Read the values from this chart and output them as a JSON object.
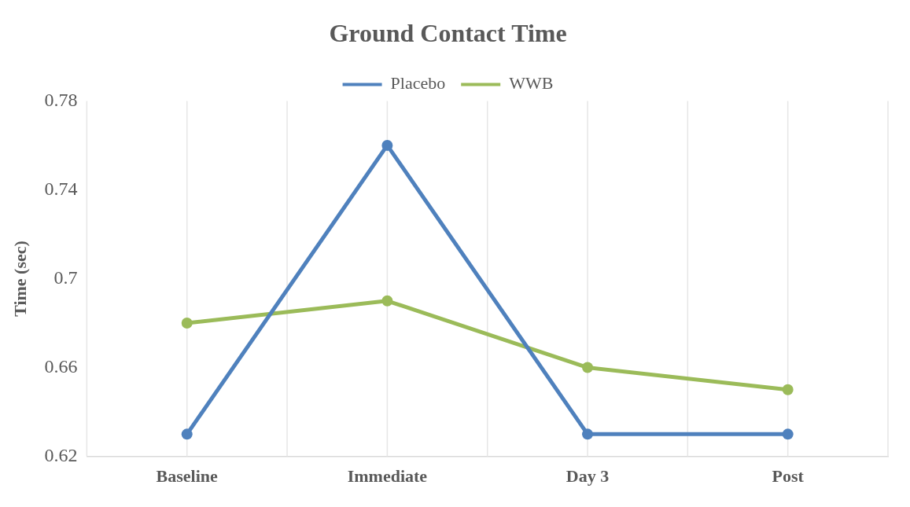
{
  "chart_data": {
    "type": "line",
    "title": "Ground Contact Time",
    "ylabel": "Time (sec)",
    "categories": [
      "Baseline",
      "Immediate",
      "Day 3",
      "Post"
    ],
    "series": [
      {
        "name": "Placebo",
        "color": "#4f81bd",
        "values": [
          0.63,
          0.76,
          0.63,
          0.63
        ]
      },
      {
        "name": "WWB",
        "color": "#9bbb59",
        "values": [
          0.68,
          0.69,
          0.66,
          0.65
        ]
      }
    ],
    "ylim": [
      0.62,
      0.78
    ],
    "yticks": [
      0.62,
      0.66,
      0.7,
      0.74,
      0.78
    ],
    "grid": "x",
    "legend": "top",
    "marker": "circle",
    "line_style": "solid"
  }
}
